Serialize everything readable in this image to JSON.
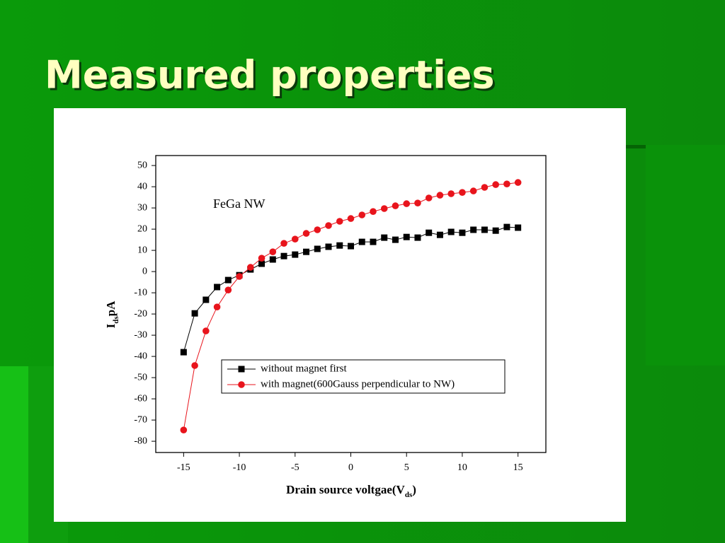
{
  "slide_title": "Measured properties",
  "chart_data": {
    "type": "line",
    "annotation": "FeGa NW",
    "xlabel": [
      "Drain source voltgae(V",
      "ds",
      ")"
    ],
    "ylabel": [
      "I",
      "ds",
      "pA"
    ],
    "x": [
      -15,
      -14,
      -13,
      -12,
      -11,
      -10,
      -9,
      -8,
      -7,
      -6,
      -5,
      -4,
      -3,
      -2,
      -1,
      0,
      1,
      2,
      3,
      4,
      5,
      6,
      7,
      8,
      9,
      10,
      11,
      12,
      13,
      14,
      15
    ],
    "series": [
      {
        "name": "without magnet first",
        "color": "#000000",
        "marker": "square",
        "values": [
          -38,
          -19.7,
          -13.3,
          -7.3,
          -4,
          -1.7,
          1,
          3.7,
          5.7,
          7.3,
          8,
          9.3,
          10.7,
          11.7,
          12.3,
          12,
          14,
          14,
          16,
          15,
          16.3,
          16,
          18.3,
          17.3,
          18.7,
          18.3,
          19.7,
          19.7,
          19.3,
          21,
          20.7
        ]
      },
      {
        "name": "with magnet(600Gauss perpendicular to NW)",
        "color": "#e8141c",
        "marker": "circle",
        "values": [
          -74.7,
          -44.3,
          -28,
          -16.7,
          -8.7,
          -2.3,
          2,
          6.3,
          9.3,
          13.3,
          15.3,
          18,
          19.7,
          21.7,
          23.7,
          25,
          26.7,
          28.3,
          29.7,
          31,
          32,
          32.3,
          34.7,
          36,
          36.7,
          37.3,
          38,
          39.7,
          41,
          41.3,
          42
        ]
      }
    ],
    "xlim": [
      -17.5,
      17.5
    ],
    "xticks": [
      -15,
      -10,
      -5,
      0,
      5,
      10,
      15
    ],
    "ylim": [
      -85.3,
      54.7
    ],
    "yticks": [
      -80,
      -70,
      -60,
      -50,
      -40,
      -30,
      -20,
      -10,
      0,
      10,
      20,
      30,
      40,
      50
    ],
    "grid": false,
    "legend": "lower right"
  }
}
